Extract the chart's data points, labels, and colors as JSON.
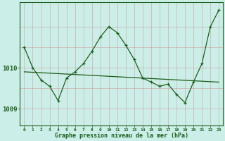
{
  "xlabel": "Graphe pression niveau de la mer (hPa)",
  "background_color": "#cceee8",
  "grid_color": "#d08080",
  "line_color": "#1a5e1a",
  "x_ticks": [
    0,
    1,
    2,
    3,
    4,
    5,
    6,
    7,
    8,
    9,
    10,
    11,
    12,
    13,
    14,
    15,
    16,
    17,
    18,
    19,
    20,
    21,
    22,
    23
  ],
  "ylim": [
    1008.6,
    1011.6
  ],
  "yticks": [
    1009,
    1010
  ],
  "series_trend": {
    "x": [
      0,
      23
    ],
    "y": [
      1009.9,
      1009.65
    ]
  },
  "series_main": {
    "x": [
      0,
      1,
      2,
      3,
      4,
      5,
      6,
      7,
      8,
      9,
      10,
      11,
      12,
      13,
      14,
      15,
      16,
      17,
      18,
      19,
      20,
      21,
      22,
      23
    ],
    "y": [
      1010.5,
      1010.0,
      1009.7,
      1009.55,
      1009.2,
      1009.75,
      1009.9,
      1010.1,
      1010.4,
      1010.75,
      1011.0,
      1010.85,
      1010.55,
      1010.2,
      1009.75,
      1009.65,
      1009.55,
      1009.6,
      1009.35,
      1009.15,
      1009.65,
      1010.1,
      1011.0,
      1011.4
    ]
  }
}
